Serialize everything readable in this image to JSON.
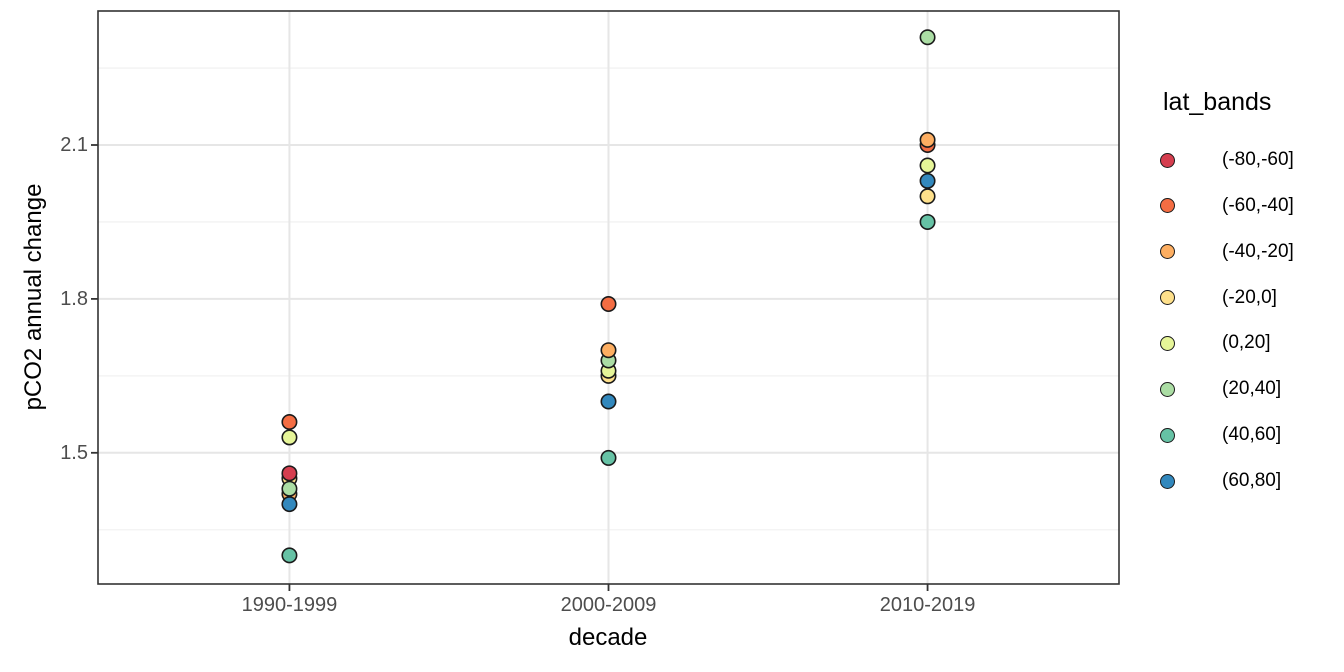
{
  "chart_data": {
    "type": "scatter",
    "title": "",
    "xlabel": "decade",
    "ylabel": "pCO2 annual change",
    "categories": [
      "1990-1999",
      "2000-2009",
      "2010-2019"
    ],
    "y_ticks": [
      "1.5",
      "1.8",
      "2.1"
    ],
    "y_tick_values": [
      1.5,
      1.8,
      2.1
    ],
    "y_minor_values": [
      1.35,
      1.65,
      1.95,
      2.25
    ],
    "ylim": [
      1.24,
      2.36
    ],
    "grid": "major-and-minor-horizontal, major-vertical",
    "legend_position": "right",
    "legend_title": "lat_bands",
    "bands": [
      {
        "label": "(-80,-60]",
        "color": "#D53E4F"
      },
      {
        "label": "(-60,-40]",
        "color": "#F46D43"
      },
      {
        "label": "(-40,-20]",
        "color": "#FDAE61"
      },
      {
        "label": "(-20,0]",
        "color": "#FEE08B"
      },
      {
        "label": "(0,20]",
        "color": "#E6F598"
      },
      {
        "label": "(20,40]",
        "color": "#ABDDA4"
      },
      {
        "label": "(40,60]",
        "color": "#66C2A5"
      },
      {
        "label": "(60,80]",
        "color": "#3288BD"
      }
    ],
    "series": [
      {
        "name": "(-80,-60]",
        "values": [
          1.46,
          null,
          null
        ]
      },
      {
        "name": "(-60,-40]",
        "values": [
          1.56,
          1.79,
          2.1
        ]
      },
      {
        "name": "(-40,-20]",
        "values": [
          1.42,
          1.7,
          2.11
        ]
      },
      {
        "name": "(-20,0]",
        "values": [
          1.45,
          1.65,
          2.0
        ]
      },
      {
        "name": "(0,20]",
        "values": [
          1.53,
          1.66,
          2.06
        ]
      },
      {
        "name": "(20,40]",
        "values": [
          1.43,
          1.68,
          2.31
        ]
      },
      {
        "name": "(40,60]",
        "values": [
          1.3,
          1.49,
          1.95
        ]
      },
      {
        "name": "(60,80]",
        "values": [
          1.4,
          1.6,
          2.03
        ]
      }
    ],
    "draw_points": [
      {
        "c": 0,
        "b": 3,
        "v": 1.45
      },
      {
        "c": 0,
        "b": 0,
        "v": 1.46
      },
      {
        "c": 0,
        "b": 1,
        "v": 1.56
      },
      {
        "c": 0,
        "b": 4,
        "v": 1.53
      },
      {
        "c": 0,
        "b": 2,
        "v": 1.42
      },
      {
        "c": 0,
        "b": 5,
        "v": 1.43
      },
      {
        "c": 0,
        "b": 7,
        "v": 1.4
      },
      {
        "c": 0,
        "b": 6,
        "v": 1.3
      },
      {
        "c": 1,
        "b": 1,
        "v": 1.79
      },
      {
        "c": 1,
        "b": 3,
        "v": 1.65
      },
      {
        "c": 1,
        "b": 4,
        "v": 1.66
      },
      {
        "c": 1,
        "b": 5,
        "v": 1.68
      },
      {
        "c": 1,
        "b": 2,
        "v": 1.7
      },
      {
        "c": 1,
        "b": 7,
        "v": 1.6
      },
      {
        "c": 1,
        "b": 6,
        "v": 1.49
      },
      {
        "c": 2,
        "b": 5,
        "v": 2.31
      },
      {
        "c": 2,
        "b": 1,
        "v": 2.1
      },
      {
        "c": 2,
        "b": 2,
        "v": 2.11
      },
      {
        "c": 2,
        "b": 4,
        "v": 2.06
      },
      {
        "c": 2,
        "b": 7,
        "v": 2.03
      },
      {
        "c": 2,
        "b": 3,
        "v": 2.0
      },
      {
        "c": 2,
        "b": 6,
        "v": 1.95
      }
    ],
    "style_colors": {
      "panel_border": "#333333",
      "grid_major": "#e6e6e6",
      "grid_minor": "#f2f2f2",
      "tick_label": "#4d4d4d",
      "point_stroke": "#1a1a1a"
    }
  }
}
